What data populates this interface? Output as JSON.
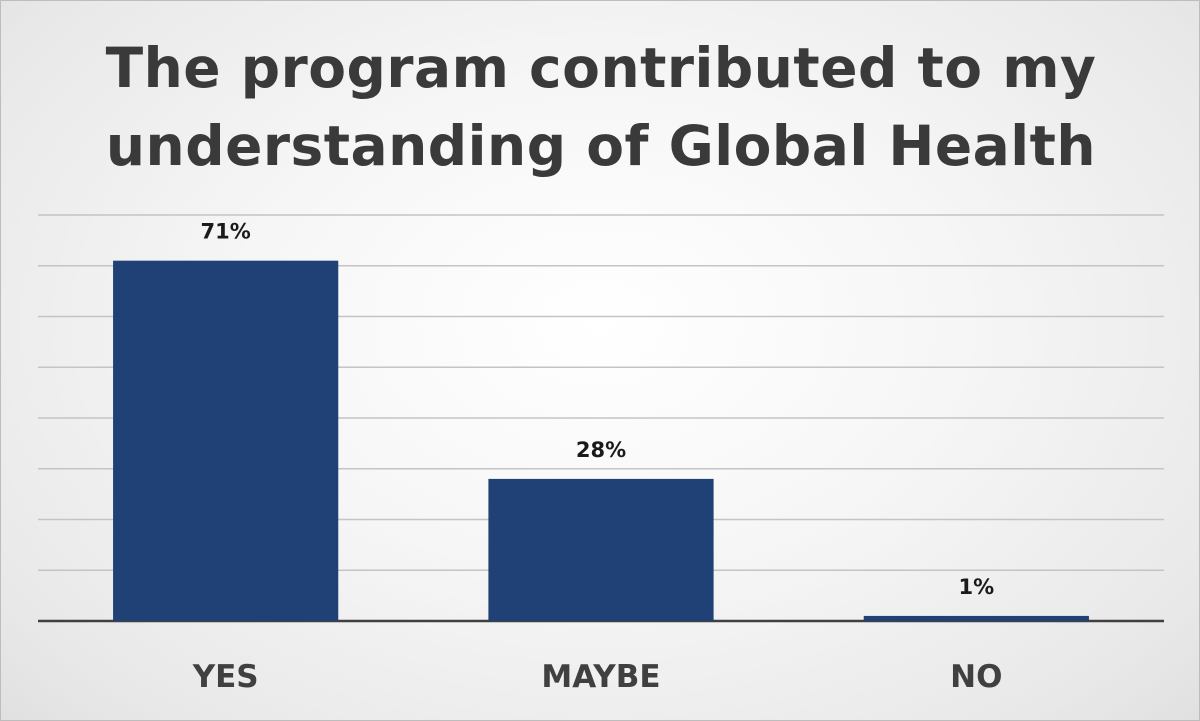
{
  "chart_data": {
    "type": "bar",
    "title": "The program contributed to my understanding of Global Health",
    "categories": [
      "YES",
      "MAYBE",
      "NO"
    ],
    "values": [
      71,
      28,
      1
    ],
    "data_labels": [
      "71%",
      "28%",
      "1%"
    ],
    "unit": "%",
    "ylim": [
      0,
      80
    ],
    "grid": true,
    "legend": "none",
    "xlabel": "",
    "ylabel": "",
    "colors": {
      "bar": "#1f4176"
    }
  }
}
